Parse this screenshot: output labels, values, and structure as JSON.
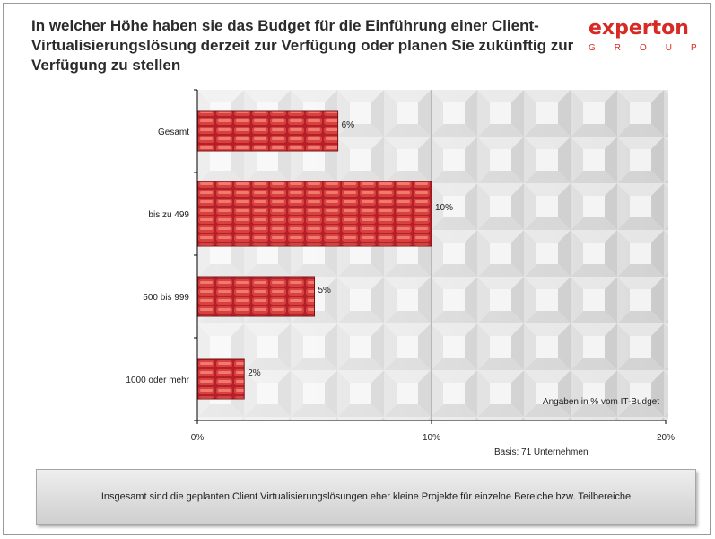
{
  "title": "In welcher Höhe haben sie das Budget für die Einführung einer Client-Virtualisierungslösung derzeit zur Verfügung oder planen Sie zukünftig zur Verfügung zu stellen",
  "logo": {
    "main": "experton",
    "sub": "GROUP"
  },
  "colors": {
    "bar": "#c0262a",
    "bar_dark": "#7a1214",
    "accent": "#d62b24"
  },
  "chart_data": {
    "type": "bar",
    "orientation": "horizontal",
    "categories": [
      "Gesamt",
      "bis zu 499",
      "500 bis 999",
      "1000 oder mehr"
    ],
    "values": [
      6,
      10,
      5,
      2
    ],
    "value_labels": [
      "6%",
      "10%",
      "5%",
      "2%"
    ],
    "xlim": [
      0,
      20
    ],
    "xticks": [
      0,
      10,
      20
    ],
    "xtick_labels": [
      "0%",
      "10%",
      "20%"
    ],
    "gridlines": [
      10
    ],
    "annotation": "Angaben in % vom IT-Budget"
  },
  "footnote": "Basis: 71 Unternehmen",
  "summary": "Insgesamt sind die geplanten Client Virtualisierungslösungen eher kleine Projekte für einzelne Bereiche bzw. Teilbereiche"
}
